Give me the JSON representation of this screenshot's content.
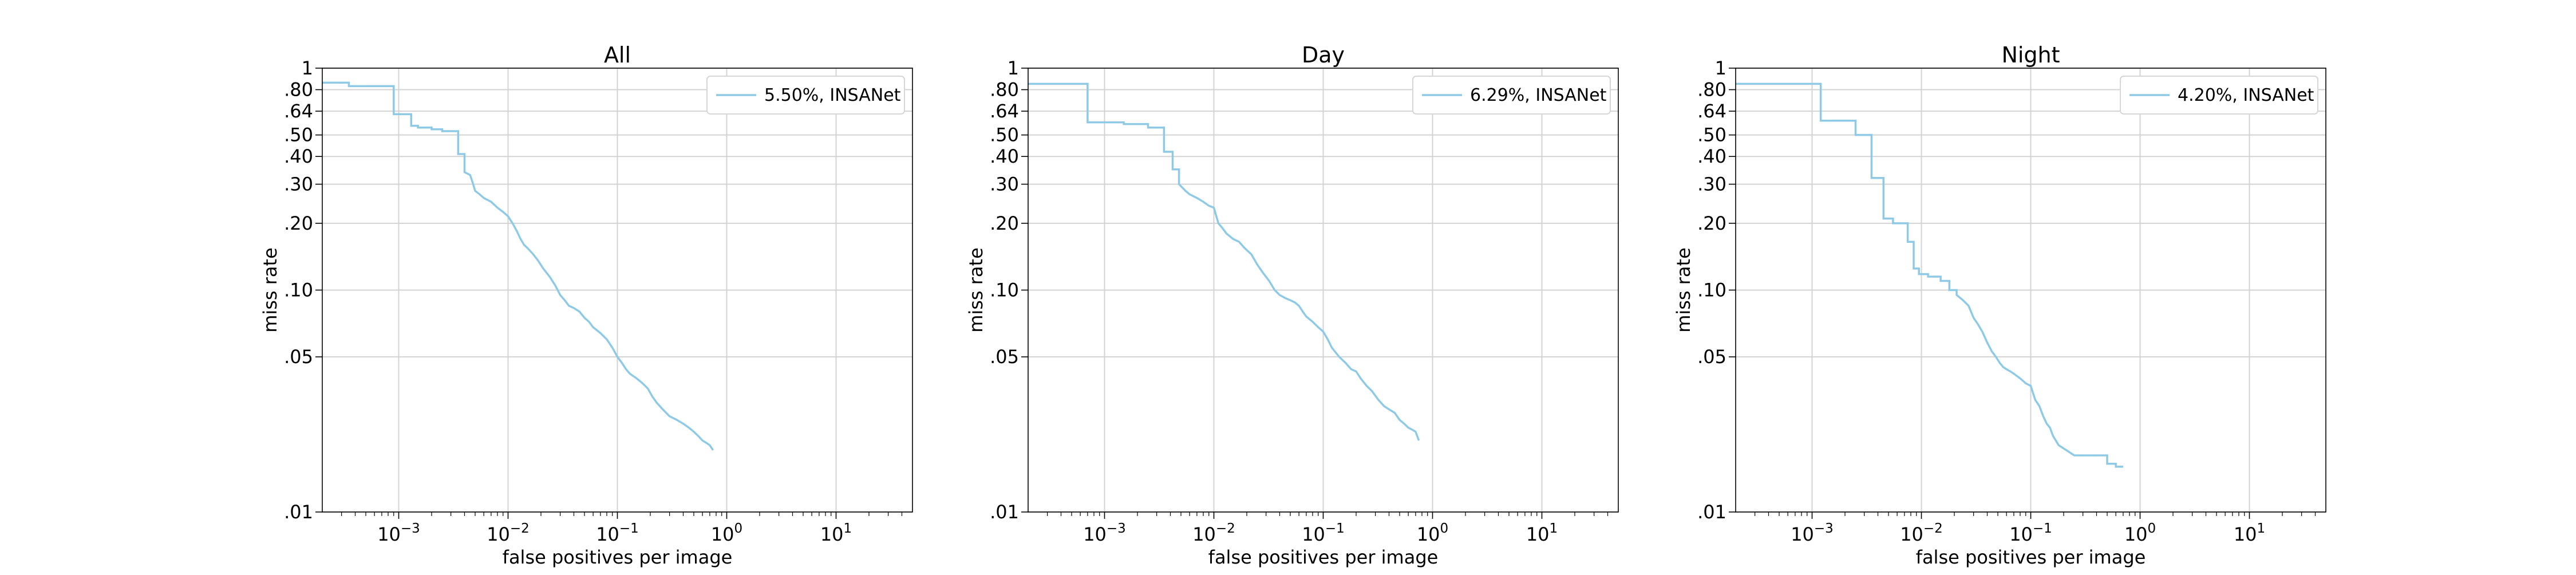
{
  "colors": {
    "series": "#8ecae6",
    "grid": "#d3d3d3",
    "axis": "#000000"
  },
  "chart_data": [
    {
      "type": "line",
      "step": true,
      "title": "All",
      "xlabel": "false positives per image",
      "ylabel": "miss rate",
      "xscale": "log",
      "yscale": "log",
      "xlim": [
        0.0002,
        50
      ],
      "ylim": [
        0.01,
        1
      ],
      "xticks": [
        0.001,
        0.01,
        0.1,
        1,
        10
      ],
      "xtick_labels": [
        {
          "base": "10",
          "exp": "−3"
        },
        {
          "base": "10",
          "exp": "−2"
        },
        {
          "base": "10",
          "exp": "−1"
        },
        {
          "base": "10",
          "exp": "0"
        },
        {
          "base": "10",
          "exp": "1"
        }
      ],
      "yticks": [
        0.01,
        0.05,
        0.1,
        0.2,
        0.3,
        0.4,
        0.5,
        0.64,
        0.8,
        1
      ],
      "ytick_labels": [
        ".01",
        ".05",
        ".10",
        ".20",
        ".30",
        ".40",
        ".50",
        ".64",
        ".80",
        "1"
      ],
      "grid": true,
      "legend": "top-right",
      "series": [
        {
          "name": "5.50%, INSANet",
          "x": [
            0.0002,
            0.00035,
            0.00035,
            0.0009,
            0.0009,
            0.0013,
            0.0013,
            0.0015,
            0.0015,
            0.002,
            0.002,
            0.0025,
            0.0025,
            0.0035,
            0.0035,
            0.004,
            0.004,
            0.0045,
            0.0048,
            0.005,
            0.0055,
            0.006,
            0.007,
            0.008,
            0.009,
            0.01,
            0.011,
            0.012,
            0.013,
            0.014,
            0.015,
            0.017,
            0.019,
            0.021,
            0.024,
            0.027,
            0.03,
            0.033,
            0.036,
            0.04,
            0.045,
            0.05,
            0.055,
            0.06,
            0.07,
            0.08,
            0.09,
            0.1,
            0.11,
            0.12,
            0.13,
            0.15,
            0.17,
            0.19,
            0.21,
            0.23,
            0.26,
            0.3,
            0.35,
            0.4,
            0.45,
            0.5,
            0.55,
            0.6,
            0.65,
            0.7,
            0.75
          ],
          "y": [
            0.86,
            0.86,
            0.83,
            0.83,
            0.62,
            0.62,
            0.55,
            0.55,
            0.54,
            0.54,
            0.53,
            0.53,
            0.52,
            0.52,
            0.41,
            0.41,
            0.34,
            0.33,
            0.3,
            0.28,
            0.27,
            0.26,
            0.25,
            0.235,
            0.225,
            0.215,
            0.2,
            0.185,
            0.17,
            0.16,
            0.155,
            0.145,
            0.135,
            0.125,
            0.115,
            0.105,
            0.095,
            0.09,
            0.085,
            0.083,
            0.08,
            0.075,
            0.072,
            0.068,
            0.064,
            0.06,
            0.055,
            0.05,
            0.047,
            0.044,
            0.042,
            0.04,
            0.038,
            0.036,
            0.033,
            0.031,
            0.029,
            0.027,
            0.026,
            0.025,
            0.024,
            0.023,
            0.022,
            0.021,
            0.0205,
            0.02,
            0.019
          ]
        }
      ]
    },
    {
      "type": "line",
      "step": true,
      "title": "Day",
      "xlabel": "false positives per image",
      "ylabel": "miss rate",
      "xscale": "log",
      "yscale": "log",
      "xlim": [
        0.0002,
        50
      ],
      "ylim": [
        0.01,
        1
      ],
      "xticks": [
        0.001,
        0.01,
        0.1,
        1,
        10
      ],
      "xtick_labels": [
        {
          "base": "10",
          "exp": "−3"
        },
        {
          "base": "10",
          "exp": "−2"
        },
        {
          "base": "10",
          "exp": "−1"
        },
        {
          "base": "10",
          "exp": "0"
        },
        {
          "base": "10",
          "exp": "1"
        }
      ],
      "yticks": [
        0.01,
        0.05,
        0.1,
        0.2,
        0.3,
        0.4,
        0.5,
        0.64,
        0.8,
        1
      ],
      "ytick_labels": [
        ".01",
        ".05",
        ".10",
        ".20",
        ".30",
        ".40",
        ".50",
        ".64",
        ".80",
        "1"
      ],
      "grid": true,
      "legend": "top-right",
      "series": [
        {
          "name": "6.29%, INSANet",
          "x": [
            0.0002,
            0.0007,
            0.0007,
            0.0015,
            0.0015,
            0.0025,
            0.0025,
            0.0035,
            0.0035,
            0.0042,
            0.0042,
            0.0048,
            0.0048,
            0.0055,
            0.006,
            0.007,
            0.008,
            0.009,
            0.01,
            0.011,
            0.012,
            0.013,
            0.015,
            0.017,
            0.019,
            0.022,
            0.025,
            0.028,
            0.032,
            0.036,
            0.04,
            0.045,
            0.05,
            0.055,
            0.06,
            0.065,
            0.07,
            0.08,
            0.09,
            0.1,
            0.11,
            0.12,
            0.14,
            0.16,
            0.18,
            0.2,
            0.22,
            0.25,
            0.28,
            0.32,
            0.36,
            0.4,
            0.45,
            0.5,
            0.55,
            0.6,
            0.65,
            0.7,
            0.75
          ],
          "y": [
            0.85,
            0.85,
            0.57,
            0.57,
            0.56,
            0.56,
            0.54,
            0.54,
            0.42,
            0.42,
            0.35,
            0.35,
            0.3,
            0.28,
            0.27,
            0.26,
            0.25,
            0.24,
            0.235,
            0.2,
            0.19,
            0.18,
            0.17,
            0.165,
            0.155,
            0.145,
            0.13,
            0.12,
            0.11,
            0.1,
            0.095,
            0.092,
            0.09,
            0.088,
            0.085,
            0.08,
            0.076,
            0.072,
            0.068,
            0.065,
            0.06,
            0.055,
            0.05,
            0.047,
            0.044,
            0.043,
            0.04,
            0.037,
            0.035,
            0.032,
            0.03,
            0.029,
            0.028,
            0.026,
            0.025,
            0.024,
            0.0235,
            0.023,
            0.021
          ]
        }
      ]
    },
    {
      "type": "line",
      "step": true,
      "title": "Night",
      "xlabel": "false positives per image",
      "ylabel": "miss rate",
      "xscale": "log",
      "yscale": "log",
      "xlim": [
        0.0002,
        50
      ],
      "ylim": [
        0.01,
        1
      ],
      "xticks": [
        0.001,
        0.01,
        0.1,
        1,
        10
      ],
      "xtick_labels": [
        {
          "base": "10",
          "exp": "−3"
        },
        {
          "base": "10",
          "exp": "−2"
        },
        {
          "base": "10",
          "exp": "−1"
        },
        {
          "base": "10",
          "exp": "0"
        },
        {
          "base": "10",
          "exp": "1"
        }
      ],
      "yticks": [
        0.01,
        0.05,
        0.1,
        0.2,
        0.3,
        0.4,
        0.5,
        0.64,
        0.8,
        1
      ],
      "ytick_labels": [
        ".01",
        ".05",
        ".10",
        ".20",
        ".30",
        ".40",
        ".50",
        ".64",
        ".80",
        "1"
      ],
      "grid": true,
      "legend": "top-right",
      "series": [
        {
          "name": "4.20%, INSANet",
          "x": [
            0.0002,
            0.0012,
            0.0012,
            0.0025,
            0.0025,
            0.0035,
            0.0035,
            0.0045,
            0.0045,
            0.0055,
            0.0055,
            0.0075,
            0.0075,
            0.0085,
            0.0085,
            0.0095,
            0.0095,
            0.0115,
            0.0115,
            0.015,
            0.015,
            0.018,
            0.018,
            0.021,
            0.021,
            0.024,
            0.027,
            0.03,
            0.033,
            0.036,
            0.04,
            0.044,
            0.048,
            0.052,
            0.056,
            0.06,
            0.065,
            0.07,
            0.08,
            0.09,
            0.1,
            0.11,
            0.12,
            0.13,
            0.14,
            0.15,
            0.16,
            0.18,
            0.18,
            0.25,
            0.25,
            0.5,
            0.5,
            0.6,
            0.6,
            0.7
          ],
          "y": [
            0.85,
            0.85,
            0.58,
            0.58,
            0.5,
            0.5,
            0.32,
            0.32,
            0.21,
            0.21,
            0.2,
            0.2,
            0.165,
            0.165,
            0.125,
            0.125,
            0.118,
            0.118,
            0.115,
            0.115,
            0.11,
            0.11,
            0.1,
            0.1,
            0.095,
            0.09,
            0.085,
            0.075,
            0.07,
            0.065,
            0.058,
            0.053,
            0.05,
            0.047,
            0.045,
            0.044,
            0.043,
            0.042,
            0.04,
            0.038,
            0.037,
            0.032,
            0.03,
            0.027,
            0.025,
            0.024,
            0.022,
            0.02,
            0.02,
            0.018,
            0.018,
            0.018,
            0.0165,
            0.0165,
            0.016,
            0.016
          ]
        }
      ]
    }
  ]
}
